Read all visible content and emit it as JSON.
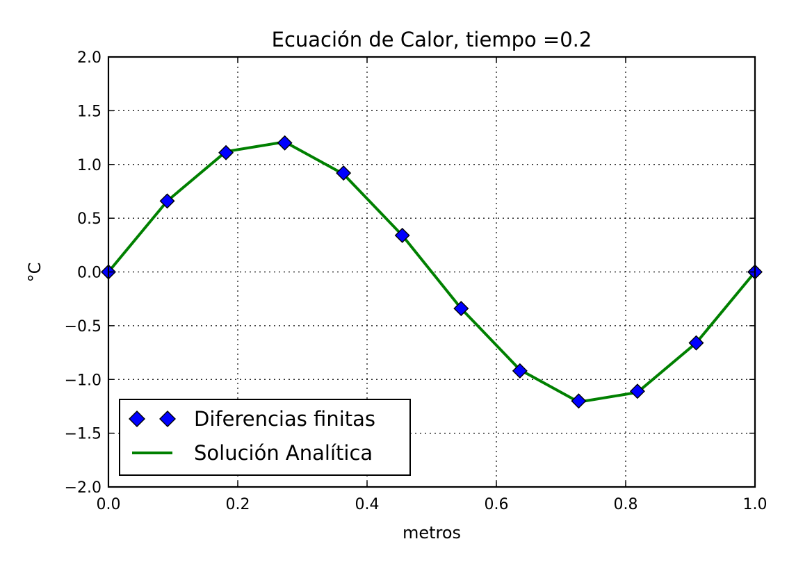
{
  "chart_data": {
    "type": "line",
    "title": "Ecuación de Calor, tiempo =0.2",
    "xlabel": "metros",
    "ylabel": "°C",
    "xlim": [
      0.0,
      1.0
    ],
    "ylim": [
      -2.0,
      2.0
    ],
    "grid": true,
    "legend_position": "lower-left",
    "x_ticks": [
      0.0,
      0.2,
      0.4,
      0.6,
      0.8,
      1.0
    ],
    "x_tick_labels": [
      "0.0",
      "0.2",
      "0.4",
      "0.6",
      "0.8",
      "1.0"
    ],
    "y_ticks": [
      2.0,
      1.5,
      1.0,
      0.5,
      0.0,
      -0.5,
      -1.0,
      -1.5,
      -2.0
    ],
    "y_tick_labels": [
      "2.0",
      "1.5",
      "1.0",
      "0.5",
      "0.0",
      "−0.5",
      "−1.0",
      "−1.5",
      "−2.0"
    ],
    "series": [
      {
        "name": "Diferencias finitas",
        "style": "markers",
        "marker": "diamond",
        "color": "#0000ff",
        "x": [
          0.0,
          0.0909,
          0.1818,
          0.2727,
          0.3636,
          0.4545,
          0.5455,
          0.6364,
          0.7273,
          0.8182,
          0.9091,
          1.0
        ],
        "y": [
          0.0,
          0.66,
          1.11,
          1.2,
          0.92,
          0.34,
          -0.34,
          -0.92,
          -1.2,
          -1.11,
          -0.66,
          0.0
        ]
      },
      {
        "name": "Solución Analítica",
        "style": "line",
        "color": "#008000",
        "x": [
          0.0,
          0.0909,
          0.1818,
          0.2727,
          0.3636,
          0.4545,
          0.5455,
          0.6364,
          0.7273,
          0.8182,
          0.9091,
          1.0
        ],
        "y": [
          0.0,
          0.66,
          1.12,
          1.21,
          0.91,
          0.34,
          -0.34,
          -0.91,
          -1.21,
          -1.12,
          -0.66,
          0.0
        ]
      }
    ]
  }
}
